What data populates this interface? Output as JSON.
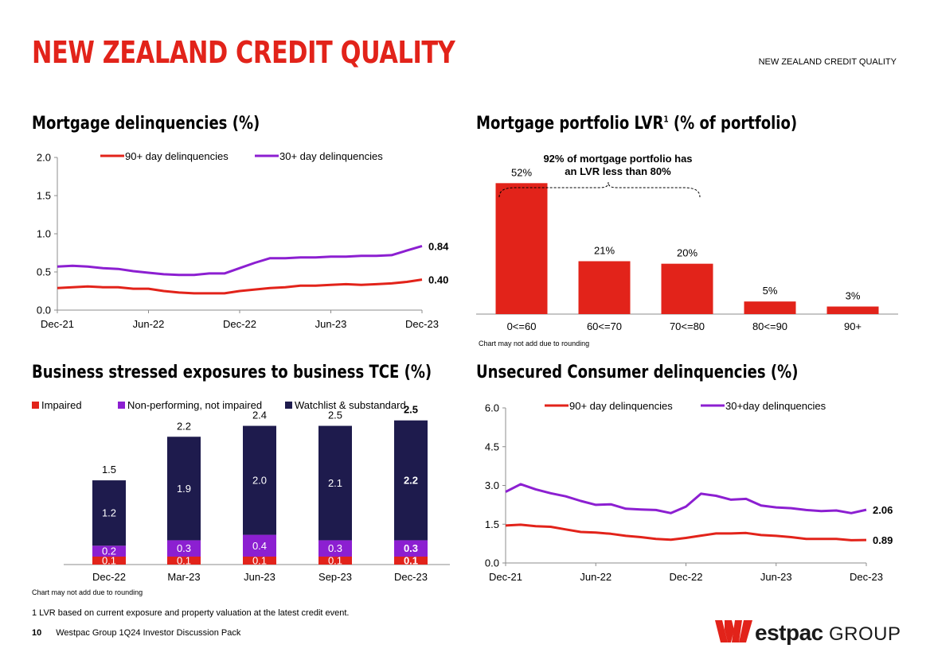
{
  "header": {
    "title": "NEW ZEALAND CREDIT QUALITY",
    "section_label": "NEW ZEALAND CREDIT QUALITY"
  },
  "colors": {
    "red": "#e2231a",
    "purple": "#8c1fd1",
    "navy": "#1e1b4d",
    "brand": "#e2231a"
  },
  "charts": {
    "mortgage_delinquencies": {
      "title": "Mortgage delinquencies (%)"
    },
    "lvr": {
      "title_main": "Mortgage portfolio LVR",
      "title_sup": "1",
      "title_tail": " (% of portfolio)"
    },
    "business": {
      "title": "Business stressed exposures to business TCE (%)"
    },
    "unsecured": {
      "title": "Unsecured Consumer delinquencies (%)"
    }
  },
  "notes": {
    "lvr_rounding": "Chart may not add due to rounding",
    "business_rounding": "Chart may not add due to rounding"
  },
  "footnote": "1 LVR based on current exposure and property valuation at the latest credit event.",
  "footer": {
    "page_number": "10",
    "text": "Westpac Group 1Q24 Investor Discussion Pack"
  },
  "logo": {
    "name": "estpac",
    "group": "GROUP"
  },
  "chart_data": [
    {
      "id": "mortgage_delinquencies",
      "type": "line",
      "title": "Mortgage delinquencies (%)",
      "x_tick_labels": [
        "Dec-21",
        "Jun-22",
        "Dec-22",
        "Jun-23",
        "Dec-23"
      ],
      "y_tick_labels": [
        "0.0",
        "0.5",
        "1.0",
        "1.5",
        "2.0"
      ],
      "ylim": [
        0,
        2.0
      ],
      "legend_position": "top",
      "series": [
        {
          "name": "90+ day delinquencies",
          "color": "#e2231a",
          "end_label": "0.40",
          "values": [
            0.29,
            0.3,
            0.31,
            0.3,
            0.3,
            0.28,
            0.28,
            0.25,
            0.23,
            0.22,
            0.22,
            0.22,
            0.25,
            0.27,
            0.29,
            0.3,
            0.32,
            0.32,
            0.33,
            0.34,
            0.33,
            0.34,
            0.35,
            0.37,
            0.4
          ]
        },
        {
          "name": "30+ day delinquencies",
          "color": "#8c1fd1",
          "end_label": "0.84",
          "values": [
            0.57,
            0.58,
            0.57,
            0.55,
            0.54,
            0.51,
            0.49,
            0.47,
            0.46,
            0.46,
            0.48,
            0.48,
            0.55,
            0.62,
            0.68,
            0.68,
            0.69,
            0.69,
            0.7,
            0.7,
            0.71,
            0.71,
            0.72,
            0.78,
            0.84
          ]
        }
      ]
    },
    {
      "id": "lvr",
      "type": "bar",
      "title": "Mortgage portfolio LVR1 (% of portfolio)",
      "categories": [
        "0<=60",
        "60<=70",
        "70<=80",
        "80<=90",
        "90+"
      ],
      "values": [
        52,
        21,
        20,
        5,
        3
      ],
      "value_labels": [
        "52%",
        "21%",
        "20%",
        "5%",
        "3%"
      ],
      "ylim": [
        0,
        60
      ],
      "annotation": [
        "92% of mortgage portfolio has",
        "an LVR less than 80%"
      ],
      "color": "#e2231a"
    },
    {
      "id": "business",
      "type": "bar",
      "stacked": true,
      "title": "Business stressed exposures to business TCE (%)",
      "categories": [
        "Dec-22",
        "Mar-23",
        "Jun-23",
        "Sep-23",
        "Dec-23"
      ],
      "totals": [
        "1.5",
        "2.2",
        "2.4",
        "2.5",
        "2.5"
      ],
      "ylim": [
        0,
        2.7
      ],
      "legend_position": "top",
      "series": [
        {
          "name": "Impaired",
          "color": "#e2231a",
          "values": [
            0.1,
            0.1,
            0.1,
            0.1,
            0.1
          ],
          "labels": [
            "0.1",
            "0.1",
            "0.1",
            "0.1",
            "0.1"
          ]
        },
        {
          "name": "Non-performing, not impaired",
          "color": "#8c1fd1",
          "values": [
            0.2,
            0.3,
            0.4,
            0.3,
            0.3
          ],
          "labels": [
            "0.2",
            "0.3",
            "0.4",
            "0.3",
            "0.3"
          ]
        },
        {
          "name": "Watchlist & substandard",
          "color": "#1e1b4d",
          "values": [
            1.2,
            1.9,
            2.0,
            2.1,
            2.2
          ],
          "labels": [
            "1.2",
            "1.9",
            "2.0",
            "2.1",
            "2.2"
          ]
        }
      ]
    },
    {
      "id": "unsecured",
      "type": "line",
      "title": "Unsecured Consumer delinquencies (%)",
      "x_tick_labels": [
        "Dec-21",
        "Jun-22",
        "Dec-22",
        "Jun-23",
        "Dec-23"
      ],
      "y_tick_labels": [
        "0.0",
        "1.5",
        "3.0",
        "4.5",
        "6.0"
      ],
      "ylim": [
        0,
        6.0
      ],
      "legend_position": "top",
      "series": [
        {
          "name": "90+ day delinquencies",
          "color": "#e2231a",
          "end_label": "0.89",
          "values": [
            1.45,
            1.48,
            1.42,
            1.4,
            1.3,
            1.2,
            1.18,
            1.13,
            1.05,
            1.0,
            0.93,
            0.9,
            0.97,
            1.06,
            1.14,
            1.14,
            1.16,
            1.08,
            1.05,
            1.0,
            0.93,
            0.93,
            0.93,
            0.88,
            0.89
          ]
        },
        {
          "name": "30+day delinquencies",
          "color": "#8c1fd1",
          "end_label": "2.06",
          "values": [
            2.75,
            3.05,
            2.85,
            2.7,
            2.58,
            2.4,
            2.25,
            2.27,
            2.1,
            2.07,
            2.05,
            1.93,
            2.18,
            2.68,
            2.6,
            2.45,
            2.48,
            2.22,
            2.15,
            2.12,
            2.05,
            2.01,
            2.03,
            1.93,
            2.06
          ]
        }
      ]
    }
  ]
}
